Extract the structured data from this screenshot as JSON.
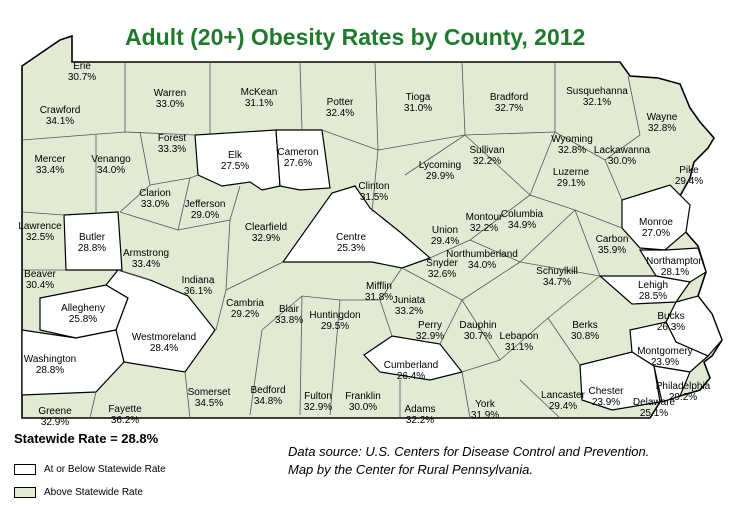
{
  "title": "Adult (20+) Obesity Rates by County, 2012",
  "statewide_rate": "Statewide Rate = 28.8%",
  "legend": [
    {
      "label": "At or Below Statewide Rate",
      "color": "#ffffff"
    },
    {
      "label": "Above Statewide Rate",
      "color": "#e1ebd3"
    }
  ],
  "source_lines": [
    "Data source: U.S. Centers for Disease Control and Prevention.",
    "Map by the Center for Rural Pennsylvania."
  ],
  "colors": {
    "above": "#e1ebd3",
    "at_or_below": "#ffffff",
    "title": "#1f7a2c",
    "border": "#000000"
  },
  "counties": [
    {
      "name": "Erie",
      "rate": "30.7%",
      "above": true
    },
    {
      "name": "Warren",
      "rate": "33.0%",
      "above": true
    },
    {
      "name": "McKean",
      "rate": "31.1%",
      "above": true
    },
    {
      "name": "Potter",
      "rate": "32.4%",
      "above": true
    },
    {
      "name": "Tioga",
      "rate": "31.0%",
      "above": true
    },
    {
      "name": "Bradford",
      "rate": "32.7%",
      "above": true
    },
    {
      "name": "Susquehanna",
      "rate": "32.1%",
      "above": true
    },
    {
      "name": "Wayne",
      "rate": "32.8%",
      "above": true
    },
    {
      "name": "Crawford",
      "rate": "34.1%",
      "above": true
    },
    {
      "name": "Forest",
      "rate": "33.3%",
      "above": true
    },
    {
      "name": "Elk",
      "rate": "27.5%",
      "above": false
    },
    {
      "name": "Cameron",
      "rate": "27.6%",
      "above": false
    },
    {
      "name": "Wyoming",
      "rate": "32.8%",
      "above": true
    },
    {
      "name": "Lackawanna",
      "rate": "30.0%",
      "above": true
    },
    {
      "name": "Sullivan",
      "rate": "32.2%",
      "above": true
    },
    {
      "name": "Mercer",
      "rate": "33.4%",
      "above": true
    },
    {
      "name": "Venango",
      "rate": "34.0%",
      "above": true
    },
    {
      "name": "Clarion",
      "rate": "33.0%",
      "above": true
    },
    {
      "name": "Jefferson",
      "rate": "29.0%",
      "above": true
    },
    {
      "name": "Clinton",
      "rate": "31.5%",
      "above": true
    },
    {
      "name": "Lycoming",
      "rate": "29.9%",
      "above": true
    },
    {
      "name": "Pike",
      "rate": "29.4%",
      "above": true
    },
    {
      "name": "Luzerne",
      "rate": "29.1%",
      "above": true
    },
    {
      "name": "Lawrence",
      "rate": "32.5%",
      "above": true
    },
    {
      "name": "Butler",
      "rate": "28.8%",
      "above": false
    },
    {
      "name": "Clearfield",
      "rate": "32.9%",
      "above": true
    },
    {
      "name": "Centre",
      "rate": "25.3%",
      "above": false
    },
    {
      "name": "Union",
      "rate": "29.4%",
      "above": true
    },
    {
      "name": "Montour",
      "rate": "32.2%",
      "above": true
    },
    {
      "name": "Columbia",
      "rate": "34.9%",
      "above": true
    },
    {
      "name": "Monroe",
      "rate": "27.0%",
      "above": false
    },
    {
      "name": "Carbon",
      "rate": "35.9%",
      "above": true
    },
    {
      "name": "Armstrong",
      "rate": "33.4%",
      "above": true
    },
    {
      "name": "Beaver",
      "rate": "30.4%",
      "above": true
    },
    {
      "name": "Northumberland",
      "rate": "34.0%",
      "above": true
    },
    {
      "name": "Snyder",
      "rate": "32.6%",
      "above": true
    },
    {
      "name": "Northampton",
      "rate": "28.1%",
      "above": false
    },
    {
      "name": "Indiana",
      "rate": "36.1%",
      "above": true
    },
    {
      "name": "Schuylkill",
      "rate": "34.7%",
      "above": true
    },
    {
      "name": "Lehigh",
      "rate": "28.5%",
      "above": false
    },
    {
      "name": "Allegheny",
      "rate": "25.8%",
      "above": false
    },
    {
      "name": "Mifflin",
      "rate": "31.8%",
      "above": true
    },
    {
      "name": "Juniata",
      "rate": "33.2%",
      "above": true
    },
    {
      "name": "Cambria",
      "rate": "29.2%",
      "above": true
    },
    {
      "name": "Blair",
      "rate": "33.8%",
      "above": true
    },
    {
      "name": "Huntingdon",
      "rate": "29.5%",
      "above": true
    },
    {
      "name": "Perry",
      "rate": "32.9%",
      "above": true
    },
    {
      "name": "Dauphin",
      "rate": "30.7%",
      "above": true
    },
    {
      "name": "Berks",
      "rate": "30.8%",
      "above": true
    },
    {
      "name": "Bucks",
      "rate": "26.3%",
      "above": false
    },
    {
      "name": "Westmoreland",
      "rate": "28.4%",
      "above": false
    },
    {
      "name": "Lebanon",
      "rate": "31.1%",
      "above": true
    },
    {
      "name": "Washington",
      "rate": "28.8%",
      "above": false
    },
    {
      "name": "Cumberland",
      "rate": "26.4%",
      "above": false
    },
    {
      "name": "Montgomery",
      "rate": "23.9%",
      "above": false
    },
    {
      "name": "Somerset",
      "rate": "34.5%",
      "above": true
    },
    {
      "name": "Bedford",
      "rate": "34.8%",
      "above": true
    },
    {
      "name": "Fulton",
      "rate": "32.9%",
      "above": true
    },
    {
      "name": "Franklin",
      "rate": "30.0%",
      "above": true
    },
    {
      "name": "Adams",
      "rate": "32.2%",
      "above": true
    },
    {
      "name": "York",
      "rate": "31.9%",
      "above": true
    },
    {
      "name": "Lancaster",
      "rate": "29.4%",
      "above": true
    },
    {
      "name": "Chester",
      "rate": "23.9%",
      "above": false
    },
    {
      "name": "Delaware",
      "rate": "25.1%",
      "above": false
    },
    {
      "name": "Philadelphia",
      "rate": "29.2%",
      "above": true
    },
    {
      "name": "Greene",
      "rate": "32.9%",
      "above": true
    },
    {
      "name": "Fayette",
      "rate": "36.2%",
      "above": true
    }
  ]
}
